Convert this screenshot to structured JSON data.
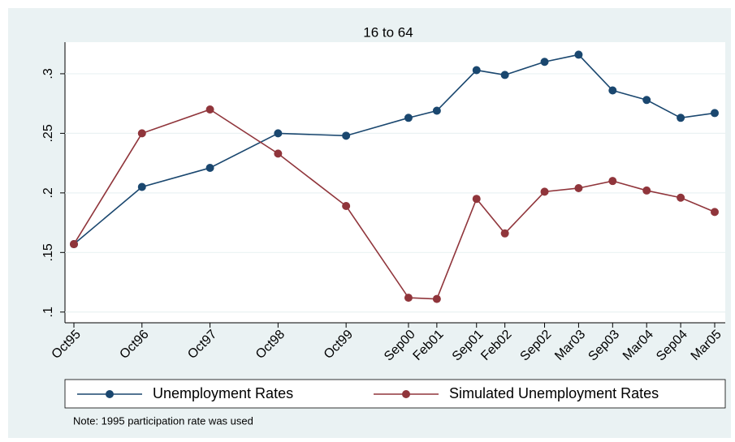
{
  "chart_data": {
    "type": "line",
    "title": "16 to 64",
    "x": [
      "Oct95",
      "Oct96",
      "Oct97",
      "Oct98",
      "Oct99",
      "Sep00",
      "Feb01",
      "Sep01",
      "Feb02",
      "Sep02",
      "Mar03",
      "Sep03",
      "Mar04",
      "Sep04",
      "Mar05"
    ],
    "series": [
      {
        "name": "Unemployment Rates",
        "color": "#1a476f",
        "values": [
          0.157,
          0.205,
          0.221,
          0.25,
          0.248,
          0.263,
          0.269,
          0.303,
          0.299,
          0.31,
          0.316,
          0.286,
          0.278,
          0.263,
          0.267
        ]
      },
      {
        "name": "Simulated Unemployment Rates",
        "color": "#90353b",
        "values": [
          0.157,
          0.25,
          0.27,
          0.233,
          0.189,
          0.112,
          0.111,
          0.195,
          0.166,
          0.201,
          0.204,
          0.21,
          0.202,
          0.196,
          0.184
        ]
      }
    ],
    "ylim": [
      0.091,
      0.3265
    ],
    "yticks": [
      {
        "value": 0.1,
        "label": ".1"
      },
      {
        "value": 0.15,
        "label": ".15"
      },
      {
        "value": 0.2,
        "label": ".2"
      },
      {
        "value": 0.25,
        "label": ".25"
      },
      {
        "value": 0.3,
        "label": ".3"
      }
    ],
    "grid": true,
    "legend": "bottom",
    "note": "Note: 1995 participation rate was used"
  }
}
